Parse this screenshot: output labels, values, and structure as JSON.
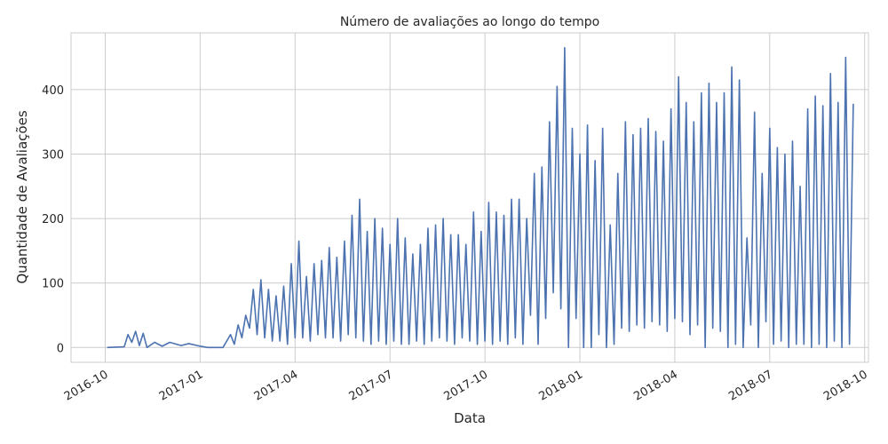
{
  "chart_data": {
    "type": "line",
    "title": "Número de avaliações ao longo do tempo",
    "xlabel": "Data",
    "ylabel": "Quantidade de Avaliações",
    "color": "#4c72b0",
    "grid": true,
    "xlim": [
      2016.66,
      2018.76
    ],
    "ylim": [
      -23,
      488
    ],
    "yticks": [
      0,
      100,
      200,
      300,
      400
    ],
    "xticks": [
      {
        "value": 2016.75,
        "label": "2016-10"
      },
      {
        "value": 2017.0,
        "label": "2017-01"
      },
      {
        "value": 2017.25,
        "label": "2017-04"
      },
      {
        "value": 2017.5,
        "label": "2017-07"
      },
      {
        "value": 2017.75,
        "label": "2017-10"
      },
      {
        "value": 2018.0,
        "label": "2018-01"
      },
      {
        "value": 2018.25,
        "label": "2018-04"
      },
      {
        "value": 2018.5,
        "label": "2018-07"
      },
      {
        "value": 2018.75,
        "label": "2018-10"
      }
    ],
    "x": [
      2016.755,
      2016.8,
      2016.81,
      2016.82,
      2016.83,
      2016.84,
      2016.85,
      2016.86,
      2016.88,
      2016.9,
      2016.92,
      2016.95,
      2016.97,
      2017.0,
      2017.02,
      2017.06,
      2017.08,
      2017.09,
      2017.1,
      2017.11,
      2017.12,
      2017.13,
      2017.14,
      2017.15,
      2017.16,
      2017.17,
      2017.18,
      2017.19,
      2017.2,
      2017.21,
      2017.22,
      2017.23,
      2017.24,
      2017.25,
      2017.26,
      2017.27,
      2017.28,
      2017.29,
      2017.3,
      2017.31,
      2017.32,
      2017.33,
      2017.34,
      2017.35,
      2017.36,
      2017.37,
      2017.38,
      2017.39,
      2017.4,
      2017.41,
      2017.42,
      2017.43,
      2017.44,
      2017.45,
      2017.46,
      2017.47,
      2017.48,
      2017.49,
      2017.5,
      2017.51,
      2017.52,
      2017.53,
      2017.54,
      2017.55,
      2017.56,
      2017.57,
      2017.58,
      2017.59,
      2017.6,
      2017.61,
      2017.62,
      2017.63,
      2017.64,
      2017.65,
      2017.66,
      2017.67,
      2017.68,
      2017.69,
      2017.7,
      2017.71,
      2017.72,
      2017.73,
      2017.74,
      2017.75,
      2017.76,
      2017.77,
      2017.78,
      2017.79,
      2017.8,
      2017.81,
      2017.82,
      2017.83,
      2017.84,
      2017.85,
      2017.86,
      2017.87,
      2017.88,
      2017.89,
      2017.9,
      2017.91,
      2017.92,
      2017.93,
      2017.94,
      2017.95,
      2017.96,
      2017.97,
      2017.98,
      2017.99,
      2018.0,
      2018.01,
      2018.02,
      2018.03,
      2018.04,
      2018.05,
      2018.06,
      2018.07,
      2018.08,
      2018.09,
      2018.1,
      2018.11,
      2018.12,
      2018.13,
      2018.14,
      2018.15,
      2018.16,
      2018.17,
      2018.18,
      2018.19,
      2018.2,
      2018.21,
      2018.22,
      2018.23,
      2018.24,
      2018.25,
      2018.26,
      2018.27,
      2018.28,
      2018.29,
      2018.3,
      2018.31,
      2018.32,
      2018.33,
      2018.34,
      2018.35,
      2018.36,
      2018.37,
      2018.38,
      2018.39,
      2018.4,
      2018.41,
      2018.42,
      2018.43,
      2018.44,
      2018.45,
      2018.46,
      2018.47,
      2018.48,
      2018.49,
      2018.5,
      2018.51,
      2018.52,
      2018.53,
      2018.54,
      2018.55,
      2018.56,
      2018.57,
      2018.58,
      2018.59,
      2018.6,
      2018.61,
      2018.62,
      2018.63,
      2018.64,
      2018.65,
      2018.66,
      2018.67,
      2018.68,
      2018.69,
      2018.7,
      2018.71,
      2018.72
    ],
    "values": [
      0,
      1,
      20,
      8,
      25,
      3,
      22,
      0,
      8,
      2,
      8,
      3,
      6,
      2,
      0,
      0,
      20,
      5,
      35,
      15,
      50,
      30,
      90,
      20,
      105,
      15,
      90,
      10,
      80,
      10,
      95,
      5,
      130,
      15,
      165,
      15,
      110,
      10,
      130,
      20,
      135,
      15,
      155,
      15,
      140,
      10,
      165,
      20,
      205,
      15,
      230,
      10,
      180,
      5,
      200,
      10,
      185,
      5,
      160,
      10,
      200,
      5,
      170,
      5,
      145,
      10,
      160,
      5,
      185,
      10,
      190,
      15,
      200,
      10,
      175,
      5,
      175,
      15,
      160,
      10,
      210,
      5,
      180,
      10,
      225,
      5,
      210,
      10,
      205,
      5,
      230,
      15,
      230,
      5,
      200,
      50,
      270,
      5,
      280,
      45,
      350,
      85,
      405,
      60,
      465,
      0,
      340,
      45,
      300,
      0,
      345,
      0,
      290,
      20,
      340,
      0,
      190,
      5,
      270,
      30,
      350,
      25,
      330,
      35,
      340,
      30,
      355,
      40,
      335,
      35,
      320,
      25,
      370,
      45,
      420,
      40,
      380,
      20,
      350,
      35,
      395,
      0,
      410,
      30,
      380,
      25,
      395,
      0,
      435,
      5,
      415,
      0,
      170,
      35,
      365,
      0,
      270,
      40,
      340,
      5,
      310,
      10,
      300,
      0,
      320,
      5,
      250,
      5,
      370,
      0,
      390,
      5,
      375,
      0,
      425,
      10,
      380,
      0,
      450,
      5,
      378
    ]
  }
}
